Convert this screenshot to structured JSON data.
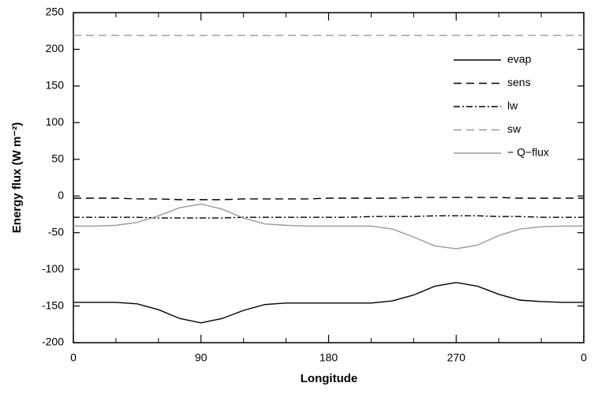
{
  "chart_data": {
    "type": "line",
    "xlabel": "Longitude",
    "ylabel": "Energy flux (W m⁻²)",
    "x": [
      0,
      15,
      30,
      45,
      60,
      75,
      90,
      105,
      120,
      135,
      150,
      165,
      180,
      195,
      210,
      225,
      240,
      255,
      270,
      285,
      300,
      315,
      330,
      345,
      360
    ],
    "series": [
      {
        "name": "evap",
        "color": "#000000",
        "dash": "none",
        "values": [
          -145,
          -145,
          -145,
          -147,
          -155,
          -167,
          -173,
          -167,
          -156,
          -148,
          -146,
          -146,
          -146,
          -146,
          -146,
          -143,
          -135,
          -123,
          -118,
          -123,
          -134,
          -142,
          -144,
          -145,
          -145
        ]
      },
      {
        "name": "sens",
        "color": "#000000",
        "dash": "10 6",
        "values": [
          -3,
          -3,
          -3,
          -4,
          -4,
          -5,
          -5,
          -5,
          -4,
          -4,
          -4,
          -4,
          -3,
          -3,
          -3,
          -3,
          -2,
          -2,
          -2,
          -2,
          -2,
          -3,
          -3,
          -3,
          -3
        ]
      },
      {
        "name": "lw",
        "color": "#000000",
        "dash": "8 3 2 3",
        "values": [
          -29,
          -29,
          -29,
          -29,
          -30,
          -30,
          -30,
          -30,
          -29,
          -29,
          -29,
          -29,
          -29,
          -29,
          -28,
          -28,
          -28,
          -27,
          -27,
          -27,
          -28,
          -28,
          -29,
          -29,
          -29
        ]
      },
      {
        "name": "sw",
        "color": "#999999",
        "dash": "10 6",
        "values": [
          219,
          219,
          219,
          219,
          219,
          219,
          219,
          219,
          219,
          219,
          219,
          219,
          219,
          219,
          219,
          219,
          219,
          219,
          219,
          219,
          219,
          219,
          219,
          219,
          219
        ]
      },
      {
        "name": "− Q−flux",
        "color": "#999999",
        "dash": "none",
        "values": [
          -41,
          -41,
          -40,
          -36,
          -27,
          -16,
          -11,
          -18,
          -30,
          -38,
          -40,
          -41,
          -41,
          -41,
          -41,
          -45,
          -56,
          -68,
          -72,
          -67,
          -54,
          -45,
          -42,
          -41,
          -41
        ]
      }
    ],
    "xlim": [
      0,
      360
    ],
    "xticks": [
      0,
      90,
      180,
      270,
      {
        "value": 360,
        "label": "0"
      }
    ],
    "xminorticks": [
      30,
      60,
      120,
      150,
      210,
      240,
      300,
      330
    ],
    "ylim": [
      -200,
      250
    ],
    "yticks": [
      -200,
      -150,
      -100,
      -50,
      0,
      50,
      100,
      150,
      200,
      250
    ],
    "legend": "upper right"
  }
}
